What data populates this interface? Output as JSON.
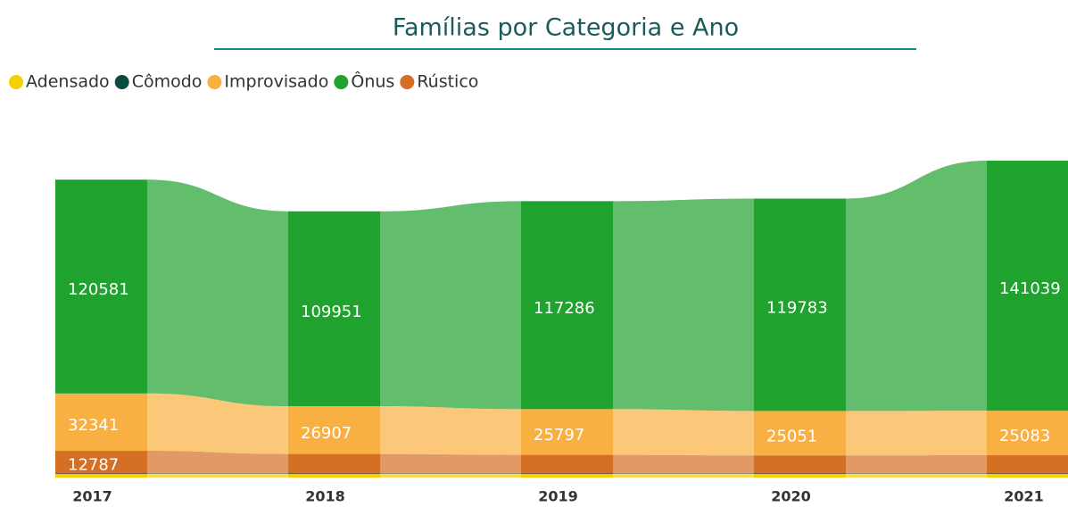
{
  "chart_data": {
    "type": "ribbon",
    "title": "Famílias por Categoria e Ano",
    "categories": [
      "2017",
      "2018",
      "2019",
      "2020",
      "2021"
    ],
    "series": [
      {
        "name": "Adensado",
        "color": "#f5d000",
        "values": [
          2000,
          2000,
          2000,
          2000,
          2000
        ]
      },
      {
        "name": "Cômodo",
        "color": "#0b4a3f",
        "values": [
          300,
          300,
          300,
          300,
          300
        ]
      },
      {
        "name": "Rústico",
        "color": "#d46f24",
        "values": [
          12787,
          11000,
          10500,
          10200,
          10300
        ]
      },
      {
        "name": "Improvisado",
        "color": "#f9b042",
        "values": [
          32341,
          26907,
          25797,
          25051,
          25083
        ]
      },
      {
        "name": "Ônus",
        "color": "#1fa22e",
        "values": [
          120581,
          109951,
          117286,
          119783,
          141039
        ]
      }
    ],
    "legend": {
      "order": [
        "Adensado",
        "Cômodo",
        "Improvisado",
        "Ônus",
        "Rústico"
      ]
    }
  }
}
